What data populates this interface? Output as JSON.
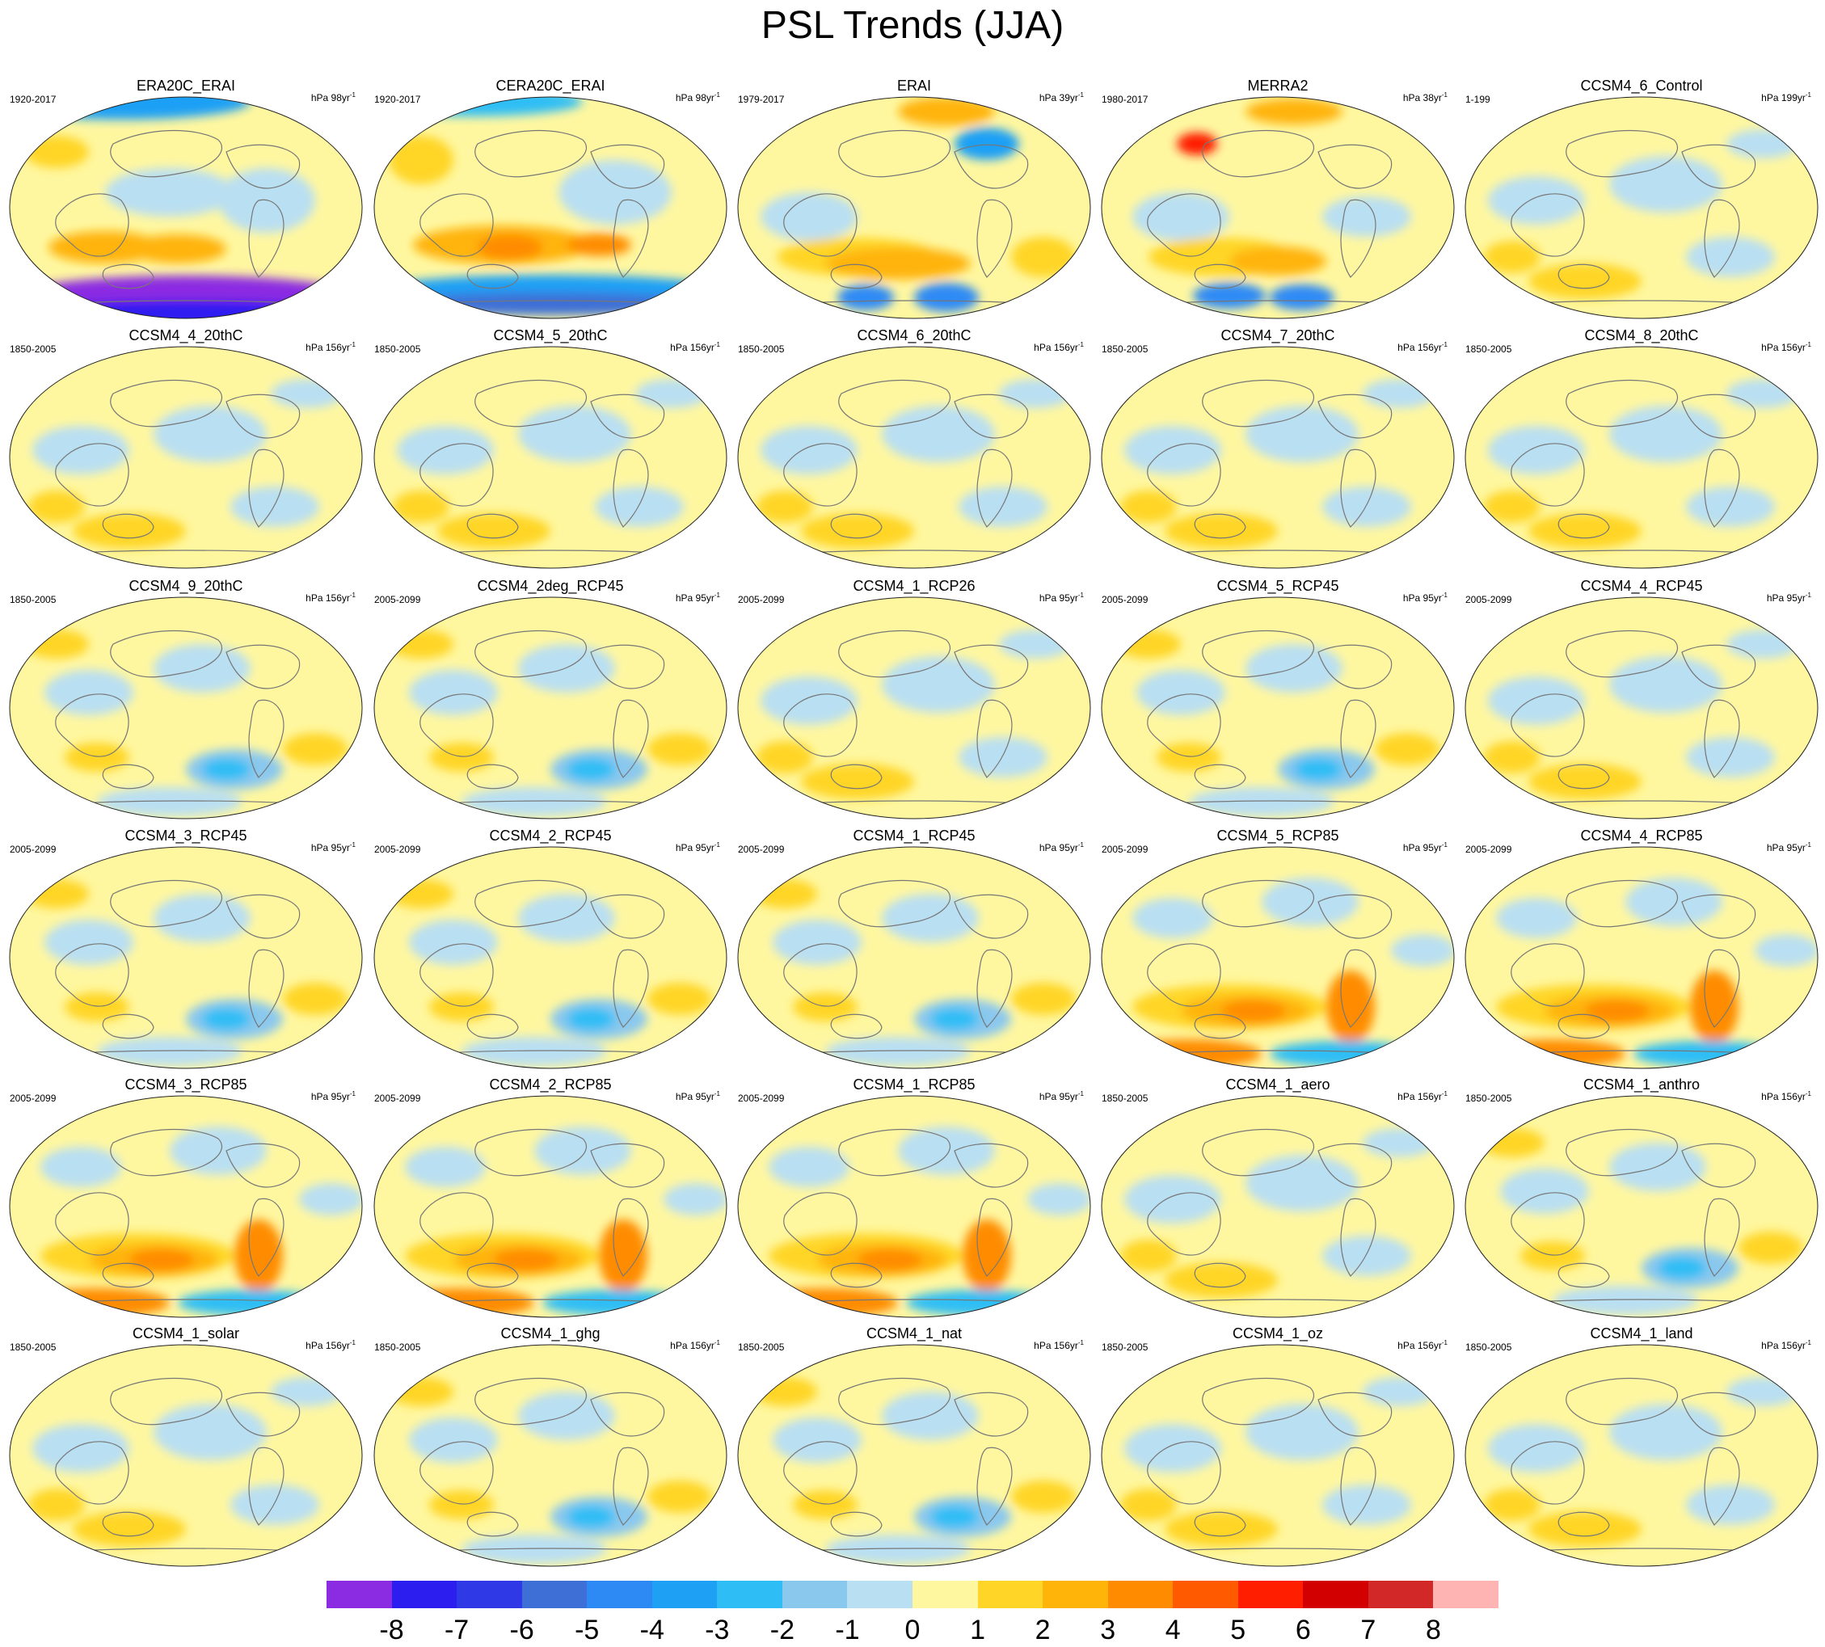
{
  "title": "PSL Trends (JJA)",
  "colorbar": {
    "labels": [
      "-8",
      "-7",
      "-6",
      "-5",
      "-4",
      "-3",
      "-2",
      "-1",
      "0",
      "1",
      "2",
      "3",
      "4",
      "5",
      "6",
      "7",
      "8"
    ],
    "colors": [
      "#8b2be2",
      "#2d1ef0",
      "#3039e6",
      "#3d6fd6",
      "#2d8af5",
      "#1ea0f5",
      "#2ebef5",
      "#8ac8ee",
      "#b9dff2",
      "#fff7a0",
      "#ffd628",
      "#ffb40a",
      "#ff8c00",
      "#ff5a00",
      "#ff1e00",
      "#d20000",
      "#d22828",
      "#ffb4b4"
    ]
  },
  "panels": [
    {
      "name": "ERA20C_ERAI",
      "years": "1920-2017",
      "units": "hPa 98yr",
      "exp": "-1",
      "preset": "s1"
    },
    {
      "name": "CERA20C_ERAI",
      "years": "1920-2017",
      "units": "hPa 98yr",
      "exp": "-1",
      "preset": "s2"
    },
    {
      "name": "ERAI",
      "years": "1979-2017",
      "units": "hPa 39yr",
      "exp": "-1",
      "preset": "s3"
    },
    {
      "name": "MERRA2",
      "years": "1980-2017",
      "units": "hPa 38yr",
      "exp": "-1",
      "preset": "s4"
    },
    {
      "name": "CCSM4_6_Control",
      "years": "1-199",
      "units": "hPa 199yr",
      "exp": "-1",
      "preset": "w"
    },
    {
      "name": "CCSM4_4_20thC",
      "years": "1850-2005",
      "units": "hPa 156yr",
      "exp": "-1",
      "preset": "w"
    },
    {
      "name": "CCSM4_5_20thC",
      "years": "1850-2005",
      "units": "hPa 156yr",
      "exp": "-1",
      "preset": "w"
    },
    {
      "name": "CCSM4_6_20thC",
      "years": "1850-2005",
      "units": "hPa 156yr",
      "exp": "-1",
      "preset": "w"
    },
    {
      "name": "CCSM4_7_20thC",
      "years": "1850-2005",
      "units": "hPa 156yr",
      "exp": "-1",
      "preset": "w"
    },
    {
      "name": "CCSM4_8_20thC",
      "years": "1850-2005",
      "units": "hPa 156yr",
      "exp": "-1",
      "preset": "w"
    },
    {
      "name": "CCSM4_9_20thC",
      "years": "1850-2005",
      "units": "hPa 156yr",
      "exp": "-1",
      "preset": "m"
    },
    {
      "name": "CCSM4_2deg_RCP45",
      "years": "2005-2099",
      "units": "hPa 95yr",
      "exp": "-1",
      "preset": "m"
    },
    {
      "name": "CCSM4_1_RCP26",
      "years": "2005-2099",
      "units": "hPa 95yr",
      "exp": "-1",
      "preset": "w"
    },
    {
      "name": "CCSM4_5_RCP45",
      "years": "2005-2099",
      "units": "hPa 95yr",
      "exp": "-1",
      "preset": "m"
    },
    {
      "name": "CCSM4_4_RCP45",
      "years": "2005-2099",
      "units": "hPa 95yr",
      "exp": "-1",
      "preset": "w"
    },
    {
      "name": "CCSM4_3_RCP45",
      "years": "2005-2099",
      "units": "hPa 95yr",
      "exp": "-1",
      "preset": "m"
    },
    {
      "name": "CCSM4_2_RCP45",
      "years": "2005-2099",
      "units": "hPa 95yr",
      "exp": "-1",
      "preset": "m"
    },
    {
      "name": "CCSM4_1_RCP45",
      "years": "2005-2099",
      "units": "hPa 95yr",
      "exp": "-1",
      "preset": "m"
    },
    {
      "name": "CCSM4_5_RCP85",
      "years": "2005-2099",
      "units": "hPa 95yr",
      "exp": "-1",
      "preset": "s"
    },
    {
      "name": "CCSM4_4_RCP85",
      "years": "2005-2099",
      "units": "hPa 95yr",
      "exp": "-1",
      "preset": "s"
    },
    {
      "name": "CCSM4_3_RCP85",
      "years": "2005-2099",
      "units": "hPa 95yr",
      "exp": "-1",
      "preset": "s"
    },
    {
      "name": "CCSM4_2_RCP85",
      "years": "2005-2099",
      "units": "hPa 95yr",
      "exp": "-1",
      "preset": "s"
    },
    {
      "name": "CCSM4_1_RCP85",
      "years": "2005-2099",
      "units": "hPa 95yr",
      "exp": "-1",
      "preset": "s"
    },
    {
      "name": "CCSM4_1_aero",
      "years": "1850-2005",
      "units": "hPa 156yr",
      "exp": "-1",
      "preset": "w"
    },
    {
      "name": "CCSM4_1_anthro",
      "years": "1850-2005",
      "units": "hPa 156yr",
      "exp": "-1",
      "preset": "m"
    },
    {
      "name": "CCSM4_1_solar",
      "years": "1850-2005",
      "units": "hPa 156yr",
      "exp": "-1",
      "preset": "w"
    },
    {
      "name": "CCSM4_1_ghg",
      "years": "1850-2005",
      "units": "hPa 156yr",
      "exp": "-1",
      "preset": "m"
    },
    {
      "name": "CCSM4_1_nat",
      "years": "1850-2005",
      "units": "hPa 156yr",
      "exp": "-1",
      "preset": "m"
    },
    {
      "name": "CCSM4_1_oz",
      "years": "1850-2005",
      "units": "hPa 156yr",
      "exp": "-1",
      "preset": "w"
    },
    {
      "name": "CCSM4_1_land",
      "years": "1850-2005",
      "units": "hPa 156yr",
      "exp": "-1",
      "preset": "w"
    }
  ]
}
